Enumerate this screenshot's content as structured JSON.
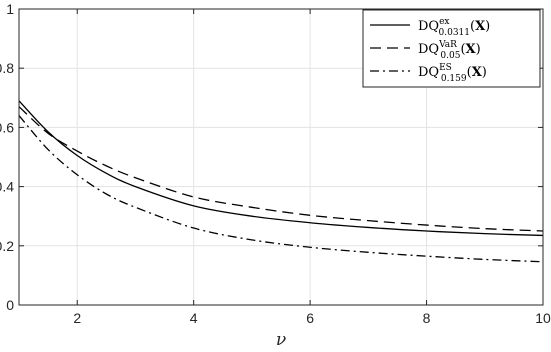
{
  "chart_data": {
    "type": "line",
    "title": "",
    "xlabel": "ν",
    "ylabel": "",
    "xlim": [
      1,
      10
    ],
    "ylim": [
      0,
      1
    ],
    "xticks": [
      2,
      4,
      6,
      8,
      10
    ],
    "yticks": [
      0,
      0.2,
      0.4,
      0.6,
      0.8,
      1
    ],
    "xtick_labels": [
      "2",
      "4",
      "6",
      "8",
      "10"
    ],
    "ytick_labels": [
      "0",
      "0.2",
      "0.4",
      "0.6",
      "0.8",
      "1"
    ],
    "grid": true,
    "legend_position": "top-right",
    "series": [
      {
        "legend_main": "DQ",
        "legend_sup": "ex",
        "legend_sub": "0.0311",
        "legend_arg": "X",
        "style": "solid",
        "color": "#000000",
        "x": [
          1,
          1.5,
          2,
          2.5,
          3,
          4,
          5,
          6,
          7,
          8,
          9,
          10
        ],
        "y": [
          0.69,
          0.585,
          0.505,
          0.445,
          0.4,
          0.335,
          0.3,
          0.278,
          0.262,
          0.25,
          0.241,
          0.235
        ]
      },
      {
        "legend_main": "DQ",
        "legend_sup": "VaR",
        "legend_sub": "0.05",
        "legend_arg": "X",
        "style": "dashed",
        "color": "#000000",
        "x": [
          1,
          1.5,
          2,
          2.5,
          3,
          4,
          5,
          6,
          7,
          8,
          9,
          10
        ],
        "y": [
          0.67,
          0.58,
          0.52,
          0.47,
          0.43,
          0.365,
          0.33,
          0.303,
          0.285,
          0.27,
          0.258,
          0.25
        ]
      },
      {
        "legend_main": "DQ",
        "legend_sup": "ES",
        "legend_sub": "0.159",
        "legend_arg": "X",
        "style": "dashdot",
        "color": "#000000",
        "x": [
          1,
          1.5,
          2,
          2.5,
          3,
          4,
          5,
          6,
          7,
          8,
          9,
          10
        ],
        "y": [
          0.64,
          0.525,
          0.44,
          0.375,
          0.33,
          0.26,
          0.22,
          0.195,
          0.178,
          0.165,
          0.154,
          0.146
        ]
      }
    ]
  }
}
